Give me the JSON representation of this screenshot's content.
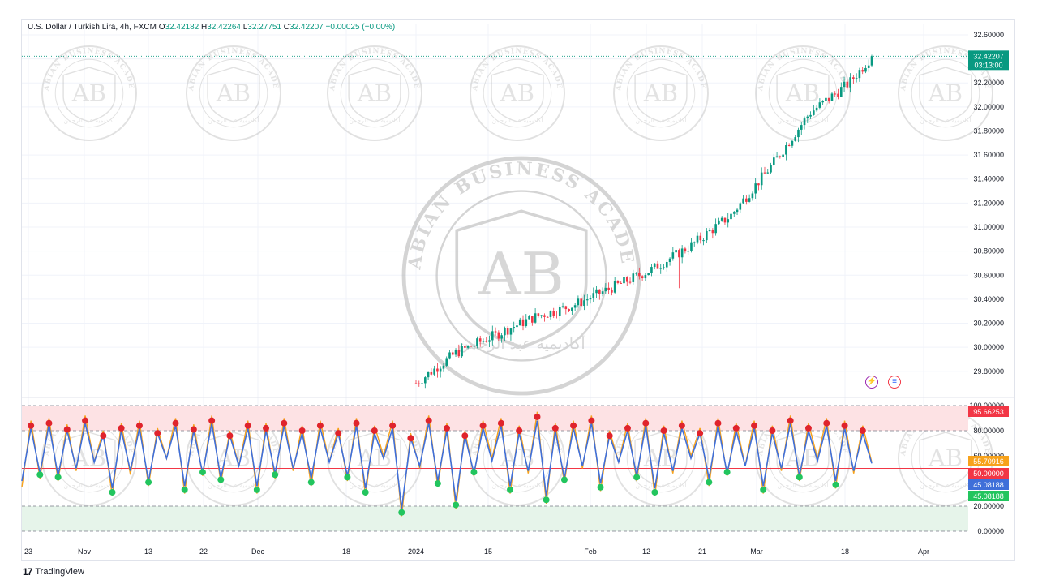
{
  "legend": {
    "symbol": "U.S. Dollar / Turkish Lira, 4h, FXCM",
    "open_label": "O",
    "open": "32.42182",
    "high_label": "H",
    "high": "32.42264",
    "low_label": "L",
    "low": "32.27751",
    "close_label": "C",
    "close": "32.42207",
    "change": "+0.00025 (+0.00%)"
  },
  "footer": {
    "brand": "TradingView"
  },
  "watermark": {
    "text": "ARABIAN BUSINESS ACADEMY",
    "initials": "AB",
    "arabic": "أكاديمية عبد الرحمن"
  },
  "icons": {
    "lightning": "lightning-icon",
    "flag": "us-flag-icon"
  },
  "colors": {
    "up": "#089981",
    "down": "#f23645",
    "rsi_fast": "#f7a21b",
    "rsi_slow": "#3f6fd9",
    "overbought_zone": "#fde2e4",
    "oversold_zone": "#e6f4ea",
    "accent": "#2962ff"
  },
  "chart_data": [
    {
      "type": "candlestick",
      "title": "U.S. Dollar / Turkish Lira, 4h, FXCM",
      "ylim": [
        29.65,
        32.62
      ],
      "y_ticks": [
        "32.60000",
        "32.40000",
        "32.20000",
        "32.00000",
        "31.80000",
        "31.60000",
        "31.40000",
        "31.20000",
        "31.00000",
        "30.80000",
        "30.60000",
        "30.40000",
        "30.20000",
        "30.00000",
        "29.80000"
      ],
      "x_ticks": [
        "23",
        "Nov",
        "13",
        "22",
        "Dec",
        "18",
        "2024",
        "15",
        "Feb",
        "12",
        "21",
        "Mar",
        "18",
        "Apr"
      ],
      "price_path": [
        {
          "date": "2024-01-01",
          "close": 29.7
        },
        {
          "date": "2024-01-08",
          "close": 29.95
        },
        {
          "date": "2024-01-15",
          "close": 30.1
        },
        {
          "date": "2024-01-22",
          "close": 30.25
        },
        {
          "date": "2024-01-29",
          "close": 30.35
        },
        {
          "date": "2024-02-05",
          "close": 30.5
        },
        {
          "date": "2024-02-12",
          "close": 30.65
        },
        {
          "date": "2024-02-19",
          "close": 30.85
        },
        {
          "date": "2024-02-26",
          "close": 31.1
        },
        {
          "date": "2024-03-04",
          "close": 31.5
        },
        {
          "date": "2024-03-11",
          "close": 31.95
        },
        {
          "date": "2024-03-18",
          "close": 32.2
        },
        {
          "date": "2024-03-22",
          "close": 32.42
        }
      ],
      "last_price": "32.42207",
      "countdown": "03:13:00",
      "last_value": 32.42207
    },
    {
      "type": "line",
      "ylim": [
        0,
        100
      ],
      "y_ticks": [
        "100.00000",
        "80.00000",
        "60.00000",
        "40.00000",
        "20.00000",
        "0.00000"
      ],
      "levels": [
        100,
        80,
        50,
        20,
        0
      ],
      "series": [
        {
          "values": [
            35,
            88,
            42,
            90,
            40,
            85,
            48,
            92,
            55,
            80,
            28,
            86,
            45,
            88,
            36,
            82,
            58,
            90,
            30,
            85,
            44,
            92,
            38,
            80,
            52,
            88,
            30,
            86,
            42,
            90,
            48,
            84,
            36,
            88,
            55,
            82,
            40,
            90,
            28,
            84,
            60,
            88,
            12,
            78,
            50,
            92,
            35,
            86,
            18,
            80,
            44,
            88,
            58,
            90,
            30,
            84,
            46,
            95,
            22,
            86,
            38,
            88,
            50,
            92,
            32,
            80,
            55,
            86,
            40,
            90,
            28,
            84,
            46,
            88,
            60,
            82,
            36,
            90,
            44,
            86,
            52,
            88,
            30,
            84,
            48,
            92,
            40,
            86,
            58,
            90,
            34,
            88,
            46,
            84,
            55
          ]
        },
        {
          "values": [
            40,
            82,
            46,
            85,
            44,
            80,
            50,
            86,
            55,
            76,
            34,
            80,
            48,
            82,
            40,
            78,
            58,
            84,
            36,
            80,
            46,
            86,
            42,
            76,
            52,
            82,
            36,
            80,
            46,
            84,
            50,
            78,
            42,
            82,
            55,
            78,
            44,
            84,
            34,
            78,
            58,
            82,
            18,
            74,
            52,
            86,
            40,
            80,
            24,
            76,
            46,
            82,
            56,
            84,
            36,
            78,
            48,
            88,
            28,
            80,
            42,
            82,
            52,
            86,
            38,
            76,
            55,
            80,
            44,
            84,
            34,
            78,
            48,
            82,
            58,
            78,
            42,
            84,
            46,
            80,
            52,
            82,
            36,
            78,
            50,
            86,
            44,
            80,
            56,
            84,
            40,
            82,
            48,
            78,
            54
          ]
        }
      ],
      "tags": [
        {
          "value": "95.66253",
          "level": 95.66253,
          "color": "#f23645"
        },
        {
          "value": "55.70916",
          "level": 55.70916,
          "color": "#f7a21b"
        },
        {
          "value": "50.00000",
          "level": 50.0,
          "color": "#f23645"
        },
        {
          "value": "45.08188",
          "level": 45.08188,
          "color": "#3f6fd9"
        },
        {
          "value": "45.08188",
          "level": 45.08188,
          "color": "#22c55e"
        }
      ]
    }
  ]
}
